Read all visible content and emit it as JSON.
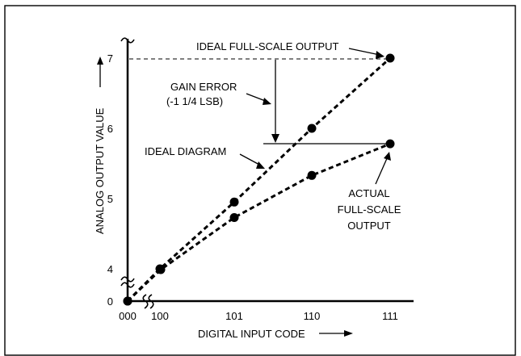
{
  "chart_data": {
    "type": "line",
    "xlabel": "DIGITAL INPUT CODE",
    "ylabel": "ANALOG OUTPUT VALUE",
    "x_categories": [
      "000",
      "100",
      "101",
      "110",
      "111"
    ],
    "y_ticks": [
      "0",
      "4",
      "5",
      "6",
      "7"
    ],
    "grid": false,
    "legend": "none",
    "series": [
      {
        "name": "IDEAL DIAGRAM",
        "style": "dashed",
        "points": [
          {
            "x": "000",
            "y": 0
          },
          {
            "x": "100",
            "y": 4
          },
          {
            "x": "101",
            "y": 4.95
          },
          {
            "x": "110",
            "y": 6
          },
          {
            "x": "111",
            "y": 7
          }
        ]
      },
      {
        "name": "ACTUAL",
        "style": "dashed",
        "points": [
          {
            "x": "000",
            "y": 0
          },
          {
            "x": "100",
            "y": 3.9
          },
          {
            "x": "101",
            "y": 4.73
          },
          {
            "x": "110",
            "y": 5.33
          },
          {
            "x": "111",
            "y": 5.78
          }
        ]
      }
    ],
    "annotations": {
      "ideal_full_scale": "IDEAL FULL-SCALE OUTPUT",
      "gain_error_line1": "GAIN ERROR",
      "gain_error_line2": "(-1 1/4 LSB)",
      "ideal_diagram": "IDEAL DIAGRAM",
      "actual_line1": "ACTUAL",
      "actual_line2": "FULL-SCALE",
      "actual_line3": "OUTPUT"
    }
  }
}
